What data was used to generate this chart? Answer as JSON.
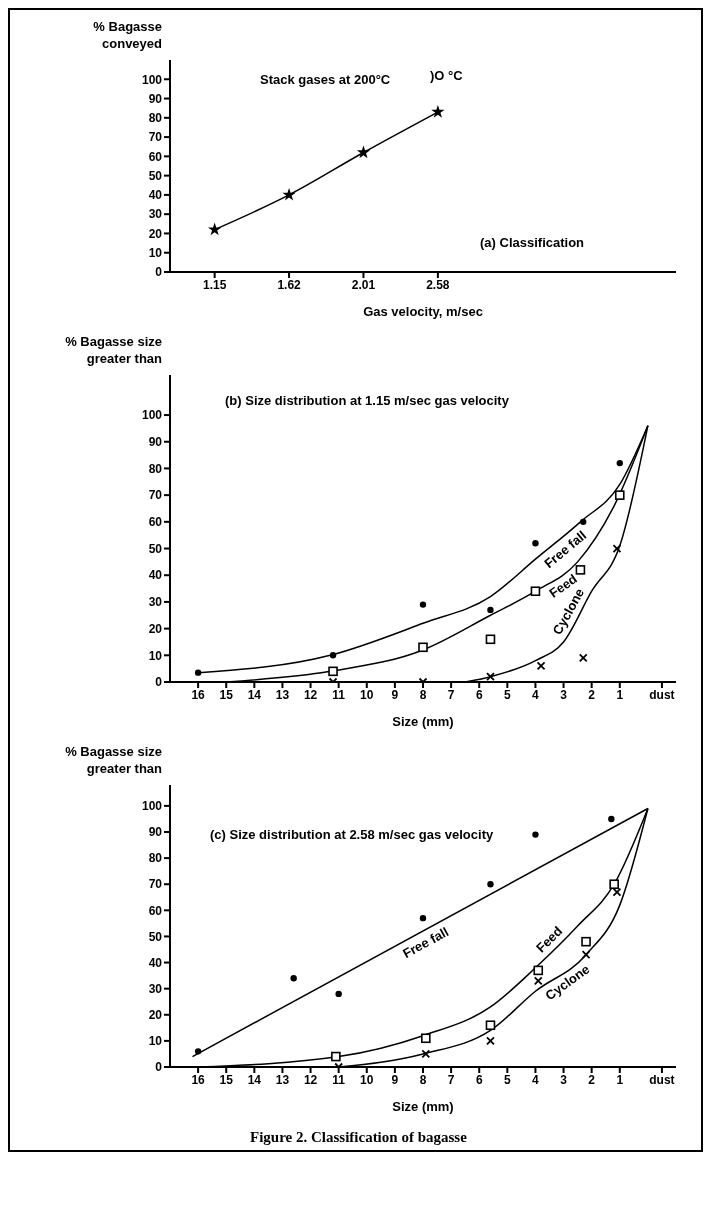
{
  "chart_data": [
    {
      "type": "line",
      "title": "Stack gases at 200°C",
      "annotations": [
        ")O °C",
        "(a) Classification"
      ],
      "xlabel": "Gas velocity, m/sec",
      "ylabel": "% Bagasse conveyed",
      "categories": [
        "1.15",
        "1.62",
        "2.01",
        "2.58"
      ],
      "ylim": [
        0,
        110
      ],
      "yticks": [
        0,
        10,
        20,
        30,
        40,
        50,
        60,
        70,
        80,
        90,
        100
      ],
      "series": [
        {
          "color": "#000000",
          "marker": "star",
          "values": [
            22,
            40,
            62,
            83
          ]
        }
      ]
    },
    {
      "type": "scatter",
      "title": "(b) Size distribution at 1.15 m/sec gas velocity",
      "xlabel": "Size (mm)",
      "ylabel": "% Bagasse size greater than",
      "xlim": [
        17,
        -1
      ],
      "xticks": [
        16,
        15,
        14,
        13,
        12,
        11,
        10,
        9,
        8,
        7,
        6,
        5,
        4,
        3,
        2,
        1,
        {
          "value": -0.5,
          "label": "dust"
        }
      ],
      "ylim": [
        0,
        115
      ],
      "yticks": [
        0,
        10,
        20,
        30,
        40,
        50,
        60,
        70,
        80,
        90,
        100
      ],
      "series": [
        {
          "color": "#000000",
          "marker": "circle",
          "x": [
            16,
            11.2,
            8,
            5.6,
            4,
            2.3,
            1
          ],
          "values": [
            3.5,
            10,
            29,
            27,
            52,
            60,
            82
          ]
        },
        {
          "color": "#000000",
          "marker": "square",
          "x": [
            11.2,
            8,
            5.6,
            4,
            2.4,
            1
          ],
          "values": [
            4,
            13,
            16,
            34,
            42,
            70
          ]
        },
        {
          "color": "#000000",
          "marker": "cross",
          "x": [
            11.2,
            8,
            5.6,
            3.8,
            2.3,
            1.1
          ],
          "values": [
            0,
            0,
            2,
            6,
            9,
            50
          ]
        },
        {
          "type": "line",
          "name": "Free fall",
          "color": "#000000",
          "marker": "none",
          "x": [
            16,
            11.3,
            8,
            5.6,
            4,
            2.4,
            1,
            0
          ],
          "values": [
            3.5,
            10,
            22,
            32,
            46,
            60,
            74,
            96
          ]
        },
        {
          "type": "line",
          "name": "Feed",
          "color": "#000000",
          "marker": "none",
          "x": [
            15,
            11.3,
            8,
            5.6,
            4,
            2.5,
            1.2,
            0
          ],
          "values": [
            0,
            4,
            12,
            25,
            34,
            45,
            66,
            96
          ]
        },
        {
          "type": "line",
          "name": "Cyclone",
          "color": "#000000",
          "marker": "none",
          "x": [
            6.5,
            5.6,
            4,
            3,
            2,
            1,
            0
          ],
          "values": [
            0,
            2,
            8,
            15,
            34,
            51,
            96
          ]
        }
      ]
    },
    {
      "type": "scatter",
      "title": "(c) Size distribution at 2.58 m/sec gas velocity",
      "annotations": [
        "Figure 2. Classification of bagasse"
      ],
      "xlabel": "Size (mm)",
      "ylabel": "% Bagasse size greater than",
      "xlim": [
        17,
        -1
      ],
      "xticks": [
        16,
        15,
        14,
        13,
        12,
        11,
        10,
        9,
        8,
        7,
        6,
        5,
        4,
        3,
        2,
        1,
        {
          "value": -0.5,
          "label": "dust"
        }
      ],
      "ylim": [
        0,
        108
      ],
      "yticks": [
        0,
        10,
        20,
        30,
        40,
        50,
        60,
        70,
        80,
        90,
        100
      ],
      "series": [
        {
          "color": "#000000",
          "marker": "circle",
          "x": [
            16,
            12.6,
            11,
            8,
            5.6,
            4,
            1.3
          ],
          "values": [
            6,
            34,
            28,
            57,
            70,
            89,
            95
          ]
        },
        {
          "color": "#000000",
          "marker": "square",
          "x": [
            11.1,
            7.9,
            5.6,
            3.9,
            2.2,
            1.2
          ],
          "values": [
            4,
            11,
            16,
            37,
            48,
            70
          ]
        },
        {
          "color": "#000000",
          "marker": "cross",
          "x": [
            11,
            7.9,
            5.6,
            3.9,
            2.2,
            1.1
          ],
          "values": [
            0,
            5,
            10,
            33,
            43,
            67
          ]
        },
        {
          "type": "line",
          "name": "Free fall",
          "color": "#000000",
          "marker": "none",
          "x": [
            16.2,
            0
          ],
          "values": [
            4,
            99
          ]
        },
        {
          "type": "line",
          "name": "Feed",
          "color": "#000000",
          "marker": "none",
          "x": [
            16,
            11,
            8,
            5.6,
            4,
            2.5,
            1.2,
            0
          ],
          "values": [
            0,
            4,
            12,
            23,
            38,
            54,
            70,
            99
          ]
        },
        {
          "type": "line",
          "name": "Cyclone",
          "color": "#000000",
          "marker": "none",
          "x": [
            11,
            8,
            5.6,
            4,
            2.2,
            1,
            0
          ],
          "values": [
            0,
            5,
            14,
            29,
            43,
            62,
            99
          ]
        }
      ]
    }
  ]
}
